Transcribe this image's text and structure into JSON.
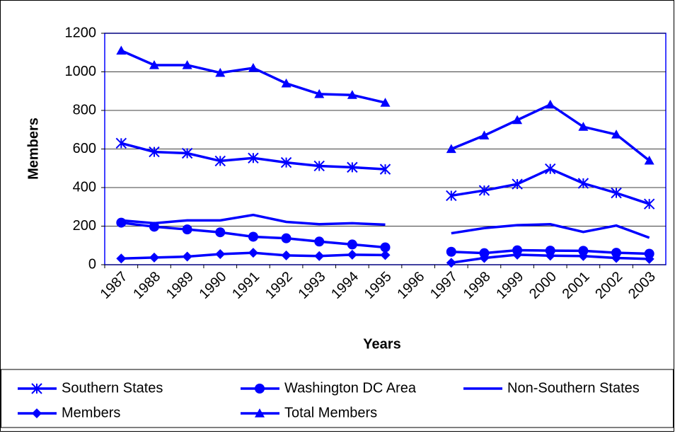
{
  "chart_data": {
    "type": "line",
    "x_label": "Years",
    "y_label": "Members",
    "categories": [
      "1987",
      "1988",
      "1989",
      "1990",
      "1991",
      "1992",
      "1993",
      "1994",
      "1995",
      "1996",
      "1997",
      "1998",
      "1999",
      "2000",
      "2001",
      "2002",
      "2003"
    ],
    "series": [
      {
        "name": "Southern States",
        "color": "#0000ff",
        "marker": "asterisk",
        "values": [
          630,
          585,
          578,
          538,
          553,
          530,
          512,
          505,
          495,
          null,
          358,
          385,
          418,
          497,
          422,
          372,
          315
        ]
      },
      {
        "name": "Washington DC Area",
        "color": "#0000ff",
        "marker": "circle",
        "values": [
          218,
          197,
          183,
          168,
          145,
          137,
          120,
          105,
          90,
          null,
          67,
          60,
          75,
          73,
          72,
          62,
          57
        ]
      },
      {
        "name": "Non-Southern States",
        "color": "#0000ff",
        "marker": "none",
        "values": [
          230,
          215,
          230,
          230,
          258,
          222,
          210,
          215,
          208,
          null,
          163,
          190,
          205,
          210,
          170,
          203,
          140
        ]
      },
      {
        "name": "Members",
        "color": "#0000ff",
        "marker": "diamond",
        "values": [
          32,
          37,
          42,
          55,
          62,
          48,
          45,
          52,
          50,
          null,
          10,
          35,
          52,
          47,
          45,
          35,
          30
        ]
      },
      {
        "name": "Total Members",
        "color": "#0000ff",
        "marker": "triangle",
        "values": [
          1110,
          1035,
          1035,
          995,
          1020,
          940,
          885,
          880,
          840,
          null,
          600,
          670,
          750,
          830,
          715,
          675,
          540
        ]
      }
    ],
    "ylim": [
      0,
      1200
    ],
    "yticks": [
      0,
      200,
      400,
      600,
      800,
      1000,
      1200
    ],
    "grid": true,
    "legend": "bottom"
  }
}
